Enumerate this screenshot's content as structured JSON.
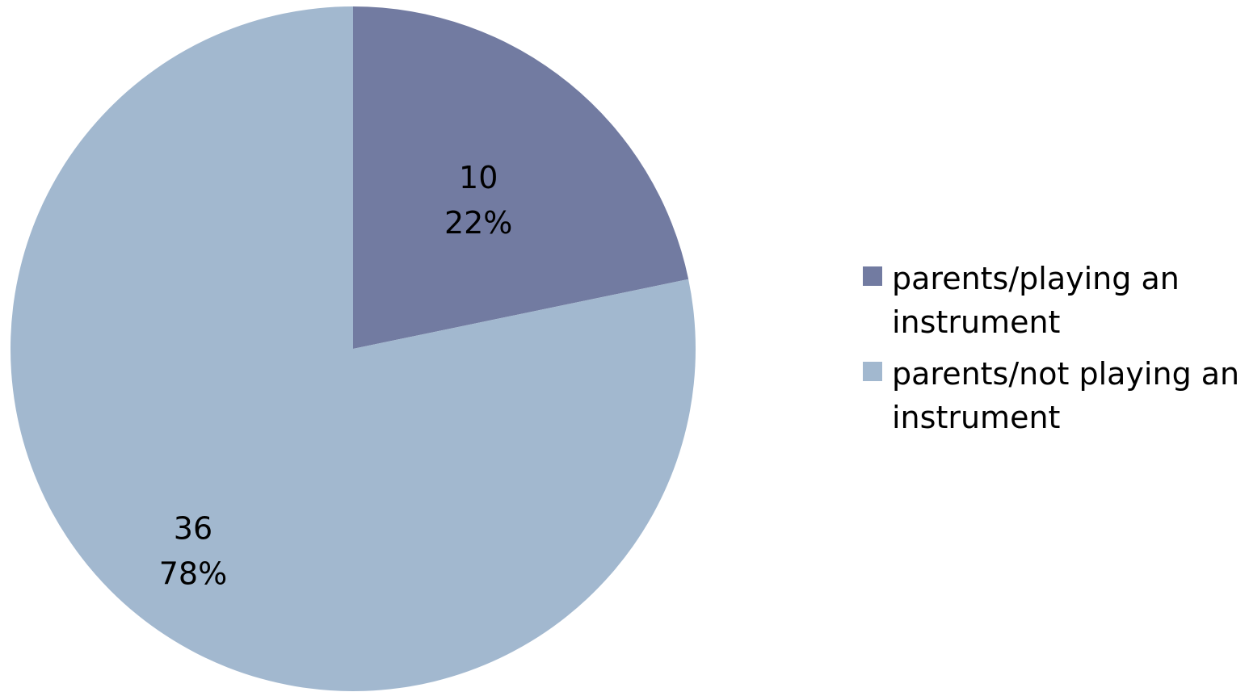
{
  "chart_data": {
    "type": "pie",
    "title": "",
    "categories": [
      "parents/playing an instrument",
      "parents/not playing an instrument"
    ],
    "values": [
      10,
      36
    ],
    "percent_labels": [
      "22%",
      "78%"
    ],
    "value_labels": [
      "10",
      "36"
    ],
    "colors": [
      "#727BA1",
      "#A2B8CF"
    ],
    "legend": "right"
  }
}
